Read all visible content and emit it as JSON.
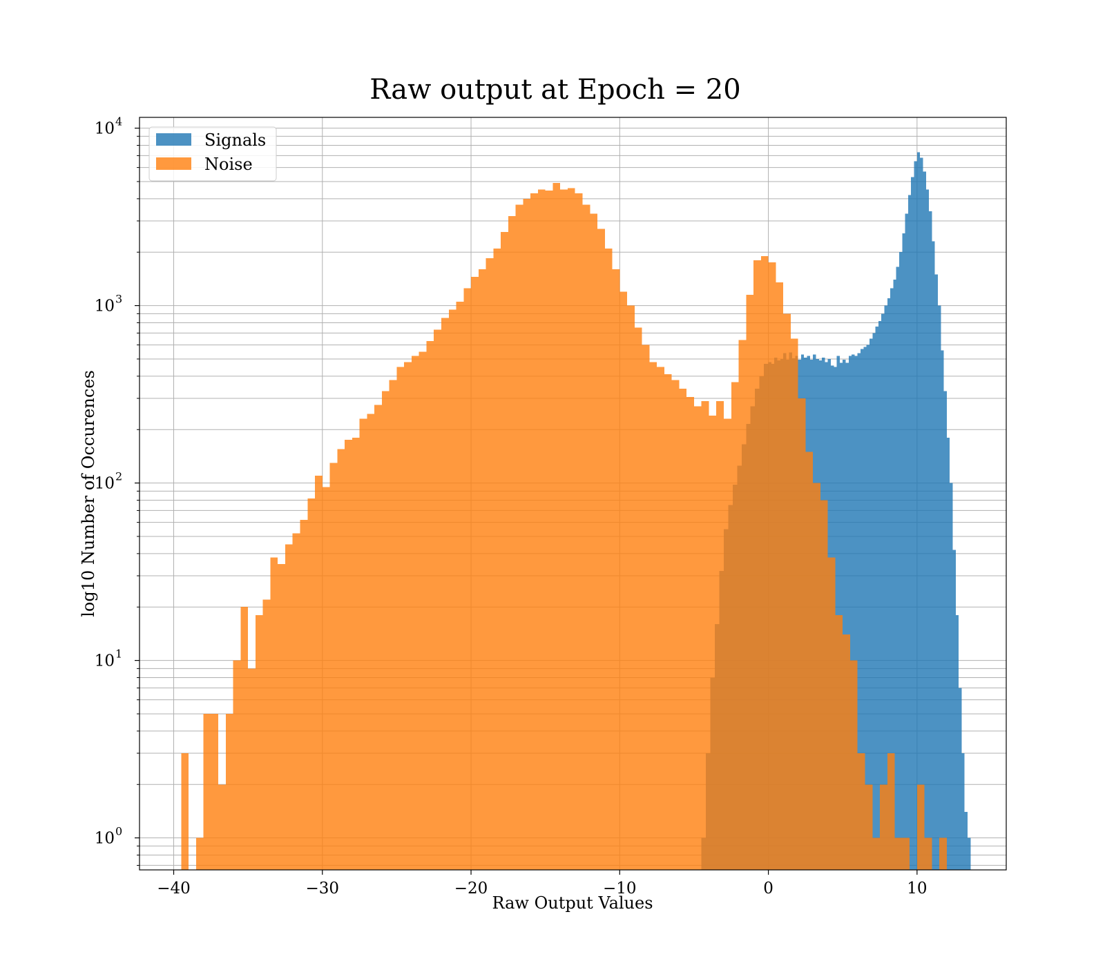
{
  "chart_data": {
    "type": "bar",
    "title": "Raw output at Epoch = 20",
    "xlabel": "Raw Output Values",
    "ylabel": "log10 Number of Occurences",
    "xlim": [
      -42.3,
      16.0
    ],
    "ylim": [
      0.66,
      11500
    ],
    "yscale": "log",
    "grid": "on (major and minor)",
    "legend_position": "top-left",
    "x_ticks": [
      {
        "value": -40,
        "label": "−40"
      },
      {
        "value": -30,
        "label": "−30"
      },
      {
        "value": -20,
        "label": "−20"
      },
      {
        "value": -10,
        "label": "−10"
      },
      {
        "value": 0,
        "label": "0"
      },
      {
        "value": 10,
        "label": "10"
      }
    ],
    "y_ticks": [
      {
        "value": 1,
        "base": "10",
        "exp": "0"
      },
      {
        "value": 10,
        "base": "10",
        "exp": "1"
      },
      {
        "value": 100,
        "base": "10",
        "exp": "2"
      },
      {
        "value": 1000,
        "base": "10",
        "exp": "3"
      },
      {
        "value": 10000,
        "base": "10",
        "exp": "4"
      }
    ],
    "series": [
      {
        "name": "Signals",
        "color": "#1f77b4",
        "opacity": 0.8,
        "bins": [
          [
            -4.5,
            -4.2,
            1
          ],
          [
            -4.2,
            -3.9,
            3
          ],
          [
            -3.9,
            -3.6,
            8
          ],
          [
            -3.6,
            -3.3,
            16
          ],
          [
            -3.3,
            -3.0,
            32
          ],
          [
            -3.0,
            -2.7,
            55
          ],
          [
            -2.7,
            -2.4,
            75
          ],
          [
            -2.4,
            -2.1,
            98
          ],
          [
            -2.1,
            -1.8,
            125
          ],
          [
            -1.8,
            -1.5,
            165
          ],
          [
            -1.5,
            -1.2,
            215
          ],
          [
            -1.2,
            -0.9,
            270
          ],
          [
            -0.9,
            -0.6,
            340
          ],
          [
            -0.6,
            -0.3,
            400
          ],
          [
            -0.3,
            0.0,
            470
          ],
          [
            0.0,
            0.2,
            480
          ],
          [
            0.2,
            0.4,
            470
          ],
          [
            0.4,
            0.6,
            510
          ],
          [
            0.6,
            0.8,
            490
          ],
          [
            0.8,
            1.0,
            500
          ],
          [
            1.0,
            1.2,
            540
          ],
          [
            1.2,
            1.4,
            495
          ],
          [
            1.4,
            1.6,
            545
          ],
          [
            1.6,
            1.8,
            505
          ],
          [
            1.8,
            2.0,
            520
          ],
          [
            2.0,
            2.2,
            495
          ],
          [
            2.2,
            2.4,
            530
          ],
          [
            2.4,
            2.6,
            510
          ],
          [
            2.6,
            2.8,
            520
          ],
          [
            2.8,
            3.0,
            495
          ],
          [
            3.0,
            3.2,
            530
          ],
          [
            3.2,
            3.4,
            500
          ],
          [
            3.4,
            3.6,
            490
          ],
          [
            3.6,
            3.8,
            510
          ],
          [
            3.8,
            4.0,
            480
          ],
          [
            4.0,
            4.2,
            500
          ],
          [
            4.2,
            4.4,
            460
          ],
          [
            4.4,
            4.6,
            450
          ],
          [
            4.6,
            4.8,
            520
          ],
          [
            4.8,
            5.0,
            475
          ],
          [
            5.0,
            5.2,
            495
          ],
          [
            5.2,
            5.4,
            475
          ],
          [
            5.4,
            5.6,
            520
          ],
          [
            5.6,
            5.8,
            530
          ],
          [
            5.8,
            6.0,
            520
          ],
          [
            6.0,
            6.2,
            540
          ],
          [
            6.2,
            6.4,
            570
          ],
          [
            6.4,
            6.6,
            585
          ],
          [
            6.6,
            6.8,
            600
          ],
          [
            6.8,
            7.0,
            650
          ],
          [
            7.0,
            7.2,
            700
          ],
          [
            7.2,
            7.4,
            760
          ],
          [
            7.4,
            7.6,
            820
          ],
          [
            7.6,
            7.8,
            900
          ],
          [
            7.8,
            8.0,
            1000
          ],
          [
            8.0,
            8.2,
            1100
          ],
          [
            8.2,
            8.4,
            1250
          ],
          [
            8.4,
            8.6,
            1400
          ],
          [
            8.6,
            8.8,
            1650
          ],
          [
            8.8,
            9.0,
            2000
          ],
          [
            9.0,
            9.2,
            2550
          ],
          [
            9.2,
            9.4,
            3300
          ],
          [
            9.4,
            9.6,
            4200
          ],
          [
            9.6,
            9.8,
            5300
          ],
          [
            9.8,
            10.0,
            6500
          ],
          [
            10.0,
            10.2,
            7300
          ],
          [
            10.2,
            10.4,
            6800
          ],
          [
            10.4,
            10.6,
            5700
          ],
          [
            10.6,
            10.8,
            4500
          ],
          [
            10.8,
            11.0,
            3400
          ],
          [
            11.0,
            11.2,
            2300
          ],
          [
            11.2,
            11.4,
            1500
          ],
          [
            11.4,
            11.6,
            1000
          ],
          [
            11.6,
            11.8,
            560
          ],
          [
            11.8,
            12.0,
            330
          ],
          [
            12.0,
            12.2,
            180
          ],
          [
            12.2,
            12.4,
            100
          ],
          [
            12.4,
            12.6,
            42
          ],
          [
            12.6,
            12.8,
            18
          ],
          [
            12.8,
            13.0,
            7
          ],
          [
            13.0,
            13.2,
            3
          ],
          [
            13.2,
            13.4,
            1.4
          ],
          [
            13.4,
            13.6,
            1
          ]
        ]
      },
      {
        "name": "Noise",
        "color": "#ff7f0e",
        "opacity": 0.8,
        "bins": [
          [
            -39.5,
            -39.0,
            3
          ],
          [
            -38.5,
            -38.0,
            1
          ],
          [
            -38.0,
            -37.5,
            5
          ],
          [
            -37.5,
            -37.0,
            5
          ],
          [
            -37.0,
            -36.5,
            2
          ],
          [
            -36.5,
            -36.0,
            5
          ],
          [
            -36.0,
            -35.5,
            10
          ],
          [
            -35.5,
            -35.0,
            20
          ],
          [
            -35.0,
            -34.5,
            9
          ],
          [
            -34.5,
            -34.0,
            18
          ],
          [
            -34.0,
            -33.5,
            22
          ],
          [
            -33.5,
            -33.0,
            38
          ],
          [
            -33.0,
            -32.5,
            35
          ],
          [
            -32.5,
            -32.0,
            45
          ],
          [
            -32.0,
            -31.5,
            52
          ],
          [
            -31.5,
            -31.0,
            62
          ],
          [
            -31.0,
            -30.5,
            82
          ],
          [
            -30.5,
            -30.0,
            110
          ],
          [
            -30.0,
            -29.5,
            95
          ],
          [
            -29.5,
            -29.0,
            130
          ],
          [
            -29.0,
            -28.5,
            155
          ],
          [
            -28.5,
            -28.0,
            175
          ],
          [
            -28.0,
            -27.5,
            180
          ],
          [
            -27.5,
            -27.0,
            230
          ],
          [
            -27.0,
            -26.5,
            245
          ],
          [
            -26.5,
            -26.0,
            275
          ],
          [
            -26.0,
            -25.5,
            330
          ],
          [
            -25.5,
            -25.0,
            380
          ],
          [
            -25.0,
            -24.5,
            450
          ],
          [
            -24.5,
            -24.0,
            480
          ],
          [
            -24.0,
            -23.5,
            520
          ],
          [
            -23.5,
            -23.0,
            550
          ],
          [
            -23.0,
            -22.5,
            630
          ],
          [
            -22.5,
            -22.0,
            730
          ],
          [
            -22.0,
            -21.5,
            850
          ],
          [
            -21.5,
            -21.0,
            950
          ],
          [
            -21.0,
            -20.5,
            1050
          ],
          [
            -20.5,
            -20.0,
            1250
          ],
          [
            -20.0,
            -19.5,
            1450
          ],
          [
            -19.5,
            -19.0,
            1600
          ],
          [
            -19.0,
            -18.5,
            1850
          ],
          [
            -18.5,
            -18.0,
            2100
          ],
          [
            -18.0,
            -17.5,
            2600
          ],
          [
            -17.5,
            -17.0,
            3200
          ],
          [
            -17.0,
            -16.5,
            3700
          ],
          [
            -16.5,
            -16.0,
            4000
          ],
          [
            -16.0,
            -15.5,
            4300
          ],
          [
            -15.5,
            -15.0,
            4500
          ],
          [
            -15.0,
            -14.5,
            4450
          ],
          [
            -14.5,
            -14.0,
            4900
          ],
          [
            -14.0,
            -13.5,
            4500
          ],
          [
            -13.5,
            -13.0,
            4600
          ],
          [
            -13.0,
            -12.5,
            4300
          ],
          [
            -12.5,
            -12.0,
            3700
          ],
          [
            -12.0,
            -11.5,
            3300
          ],
          [
            -11.5,
            -11.0,
            2700
          ],
          [
            -11.0,
            -10.5,
            2100
          ],
          [
            -10.5,
            -10.0,
            1600
          ],
          [
            -10.0,
            -9.5,
            1200
          ],
          [
            -9.5,
            -9.0,
            1000
          ],
          [
            -9.0,
            -8.5,
            750
          ],
          [
            -8.5,
            -8.0,
            600
          ],
          [
            -8.0,
            -7.5,
            480
          ],
          [
            -7.5,
            -7.0,
            450
          ],
          [
            -7.0,
            -6.5,
            410
          ],
          [
            -6.5,
            -6.0,
            380
          ],
          [
            -6.0,
            -5.5,
            340
          ],
          [
            -5.5,
            -5.0,
            305
          ],
          [
            -5.0,
            -4.5,
            270
          ],
          [
            -4.5,
            -4.0,
            290
          ],
          [
            -4.0,
            -3.5,
            240
          ],
          [
            -3.5,
            -3.0,
            290
          ],
          [
            -3.0,
            -2.5,
            230
          ],
          [
            -2.5,
            -2.0,
            370
          ],
          [
            -2.0,
            -1.5,
            640
          ],
          [
            -1.5,
            -1.0,
            1150
          ],
          [
            -1.0,
            -0.5,
            1800
          ],
          [
            -0.5,
            0.0,
            1900
          ],
          [
            0.0,
            0.5,
            1750
          ],
          [
            0.5,
            1.0,
            1350
          ],
          [
            1.0,
            1.5,
            900
          ],
          [
            1.5,
            2.0,
            650
          ],
          [
            2.0,
            2.5,
            300
          ],
          [
            2.5,
            3.0,
            150
          ],
          [
            3.0,
            3.5,
            100
          ],
          [
            3.5,
            4.0,
            80
          ],
          [
            4.0,
            4.5,
            38
          ],
          [
            4.5,
            5.0,
            18
          ],
          [
            5.0,
            5.5,
            14
          ],
          [
            5.5,
            6.0,
            10
          ],
          [
            6.0,
            6.5,
            3
          ],
          [
            6.5,
            7.0,
            2
          ],
          [
            7.0,
            7.5,
            1
          ],
          [
            7.5,
            8.0,
            2
          ],
          [
            8.0,
            8.5,
            3
          ],
          [
            8.5,
            9.0,
            1
          ],
          [
            9.0,
            9.5,
            1
          ],
          [
            10.0,
            10.5,
            2
          ],
          [
            10.5,
            11.0,
            1
          ],
          [
            11.5,
            12.0,
            1
          ]
        ]
      }
    ]
  }
}
